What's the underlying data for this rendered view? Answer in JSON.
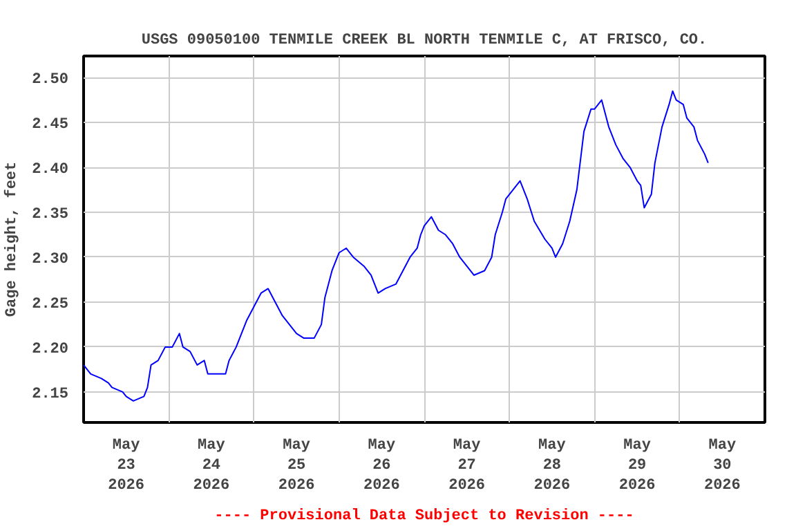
{
  "chart_data": {
    "type": "line",
    "title": "USGS 09050100 TENMILE CREEK BL NORTH TENMILE C, AT FRISCO, CO.",
    "ylabel": "Gage height, feet",
    "annotations": [
      "---- Provisional Data Subject to Revision ----"
    ],
    "x": [
      "2026-05-23T00:00",
      "2026-05-23T02:00",
      "2026-05-23T05:00",
      "2026-05-23T07:00",
      "2026-05-23T08:00",
      "2026-05-23T11:00",
      "2026-05-23T12:00",
      "2026-05-23T14:00",
      "2026-05-23T17:00",
      "2026-05-23T18:00",
      "2026-05-23T19:00",
      "2026-05-23T21:00",
      "2026-05-23T23:00",
      "2026-05-24T01:00",
      "2026-05-24T03:00",
      "2026-05-24T04:00",
      "2026-05-24T06:00",
      "2026-05-24T08:00",
      "2026-05-24T10:00",
      "2026-05-24T11:00",
      "2026-05-24T13:00",
      "2026-05-24T16:00",
      "2026-05-24T17:00",
      "2026-05-24T19:00",
      "2026-05-24T20:00",
      "2026-05-24T22:00",
      "2026-05-25T00:00",
      "2026-05-25T02:00",
      "2026-05-25T04:00",
      "2026-05-25T06:00",
      "2026-05-25T08:00",
      "2026-05-25T10:00",
      "2026-05-25T12:00",
      "2026-05-25T14:00",
      "2026-05-25T17:00",
      "2026-05-25T19:00",
      "2026-05-25T20:00",
      "2026-05-25T22:00",
      "2026-05-26T00:00",
      "2026-05-26T02:00",
      "2026-05-26T04:00",
      "2026-05-26T07:00",
      "2026-05-26T09:00",
      "2026-05-26T11:00",
      "2026-05-26T13:00",
      "2026-05-26T16:00",
      "2026-05-26T18:00",
      "2026-05-26T20:00",
      "2026-05-26T22:00",
      "2026-05-26T23:00",
      "2026-05-27T00:00",
      "2026-05-27T02:00",
      "2026-05-27T04:00",
      "2026-05-27T06:00",
      "2026-05-27T08:00",
      "2026-05-27T10:00",
      "2026-05-27T12:00",
      "2026-05-27T14:00",
      "2026-05-27T17:00",
      "2026-05-27T19:00",
      "2026-05-27T20:00",
      "2026-05-27T22:00",
      "2026-05-27T23:00",
      "2026-05-28T01:00",
      "2026-05-28T03:00",
      "2026-05-28T05:00",
      "2026-05-28T07:00",
      "2026-05-28T10:00",
      "2026-05-28T12:00",
      "2026-05-28T13:00",
      "2026-05-28T15:00",
      "2026-05-28T17:00",
      "2026-05-28T19:00",
      "2026-05-28T21:00",
      "2026-05-28T23:00",
      "2026-05-29T00:00",
      "2026-05-29T02:00",
      "2026-05-29T03:00",
      "2026-05-29T04:00",
      "2026-05-29T06:00",
      "2026-05-29T08:00",
      "2026-05-29T10:00",
      "2026-05-29T12:00",
      "2026-05-29T13:00",
      "2026-05-29T14:00",
      "2026-05-29T16:00",
      "2026-05-29T17:00",
      "2026-05-29T19:00",
      "2026-05-29T21:00",
      "2026-05-29T22:00",
      "2026-05-29T23:00",
      "2026-05-30T01:00",
      "2026-05-30T02:00",
      "2026-05-30T04:00",
      "2026-05-30T05:00",
      "2026-05-30T07:00",
      "2026-05-30T08:00"
    ],
    "series": [
      {
        "color": "#0000ff",
        "values": [
          2.18,
          2.17,
          2.165,
          2.16,
          2.155,
          2.15,
          2.145,
          2.14,
          2.145,
          2.155,
          2.18,
          2.185,
          2.2,
          2.2,
          2.215,
          2.2,
          2.195,
          2.18,
          2.185,
          2.17,
          2.17,
          2.17,
          2.185,
          2.2,
          2.21,
          2.23,
          2.245,
          2.26,
          2.265,
          2.25,
          2.235,
          2.225,
          2.215,
          2.21,
          2.21,
          2.225,
          2.255,
          2.285,
          2.305,
          2.31,
          2.3,
          2.29,
          2.28,
          2.26,
          2.265,
          2.27,
          2.285,
          2.3,
          2.31,
          2.325,
          2.335,
          2.345,
          2.33,
          2.325,
          2.315,
          2.3,
          2.29,
          2.28,
          2.285,
          2.3,
          2.325,
          2.35,
          2.365,
          2.375,
          2.385,
          2.365,
          2.34,
          2.32,
          2.31,
          2.3,
          2.315,
          2.34,
          2.375,
          2.44,
          2.465,
          2.465,
          2.475,
          2.46,
          2.445,
          2.425,
          2.41,
          2.4,
          2.385,
          2.38,
          2.355,
          2.37,
          2.405,
          2.445,
          2.47,
          2.485,
          2.475,
          2.47,
          2.455,
          2.445,
          2.43,
          2.415,
          2.405
        ]
      }
    ],
    "xlim": [
      "2026-05-23T00:00",
      "2026-05-31T00:00"
    ],
    "xticks": [
      {
        "value": "2026-05-23T12:00",
        "label": "May\n23\n2026"
      },
      {
        "value": "2026-05-24T00:00",
        "label": null
      },
      {
        "value": "2026-05-24T12:00",
        "label": "May\n24\n2026"
      },
      {
        "value": "2026-05-25T00:00",
        "label": null
      },
      {
        "value": "2026-05-25T12:00",
        "label": "May\n25\n2026"
      },
      {
        "value": "2026-05-26T00:00",
        "label": null
      },
      {
        "value": "2026-05-26T12:00",
        "label": "May\n26\n2026"
      },
      {
        "value": "2026-05-27T00:00",
        "label": null
      },
      {
        "value": "2026-05-27T12:00",
        "label": "May\n27\n2026"
      },
      {
        "value": "2026-05-28T00:00",
        "label": null
      },
      {
        "value": "2026-05-28T12:00",
        "label": "May\n28\n2026"
      },
      {
        "value": "2026-05-29T00:00",
        "label": null
      },
      {
        "value": "2026-05-29T12:00",
        "label": "May\n29\n2026"
      },
      {
        "value": "2026-05-30T00:00",
        "label": null
      },
      {
        "value": "2026-05-30T12:00",
        "label": "May\n30\n2026"
      }
    ],
    "ylim": [
      2.116,
      2.524
    ],
    "yticks": [
      {
        "value": 2.15,
        "label": "2.15"
      },
      {
        "value": 2.2,
        "label": "2.20"
      },
      {
        "value": 2.25,
        "label": "2.25"
      },
      {
        "value": 2.3,
        "label": "2.30"
      },
      {
        "value": 2.35,
        "label": "2.35"
      },
      {
        "value": 2.4,
        "label": "2.40"
      },
      {
        "value": 2.45,
        "label": "2.45"
      },
      {
        "value": 2.5,
        "label": "2.50"
      }
    ],
    "grid": true,
    "line_style": "solid",
    "marker": "none"
  }
}
